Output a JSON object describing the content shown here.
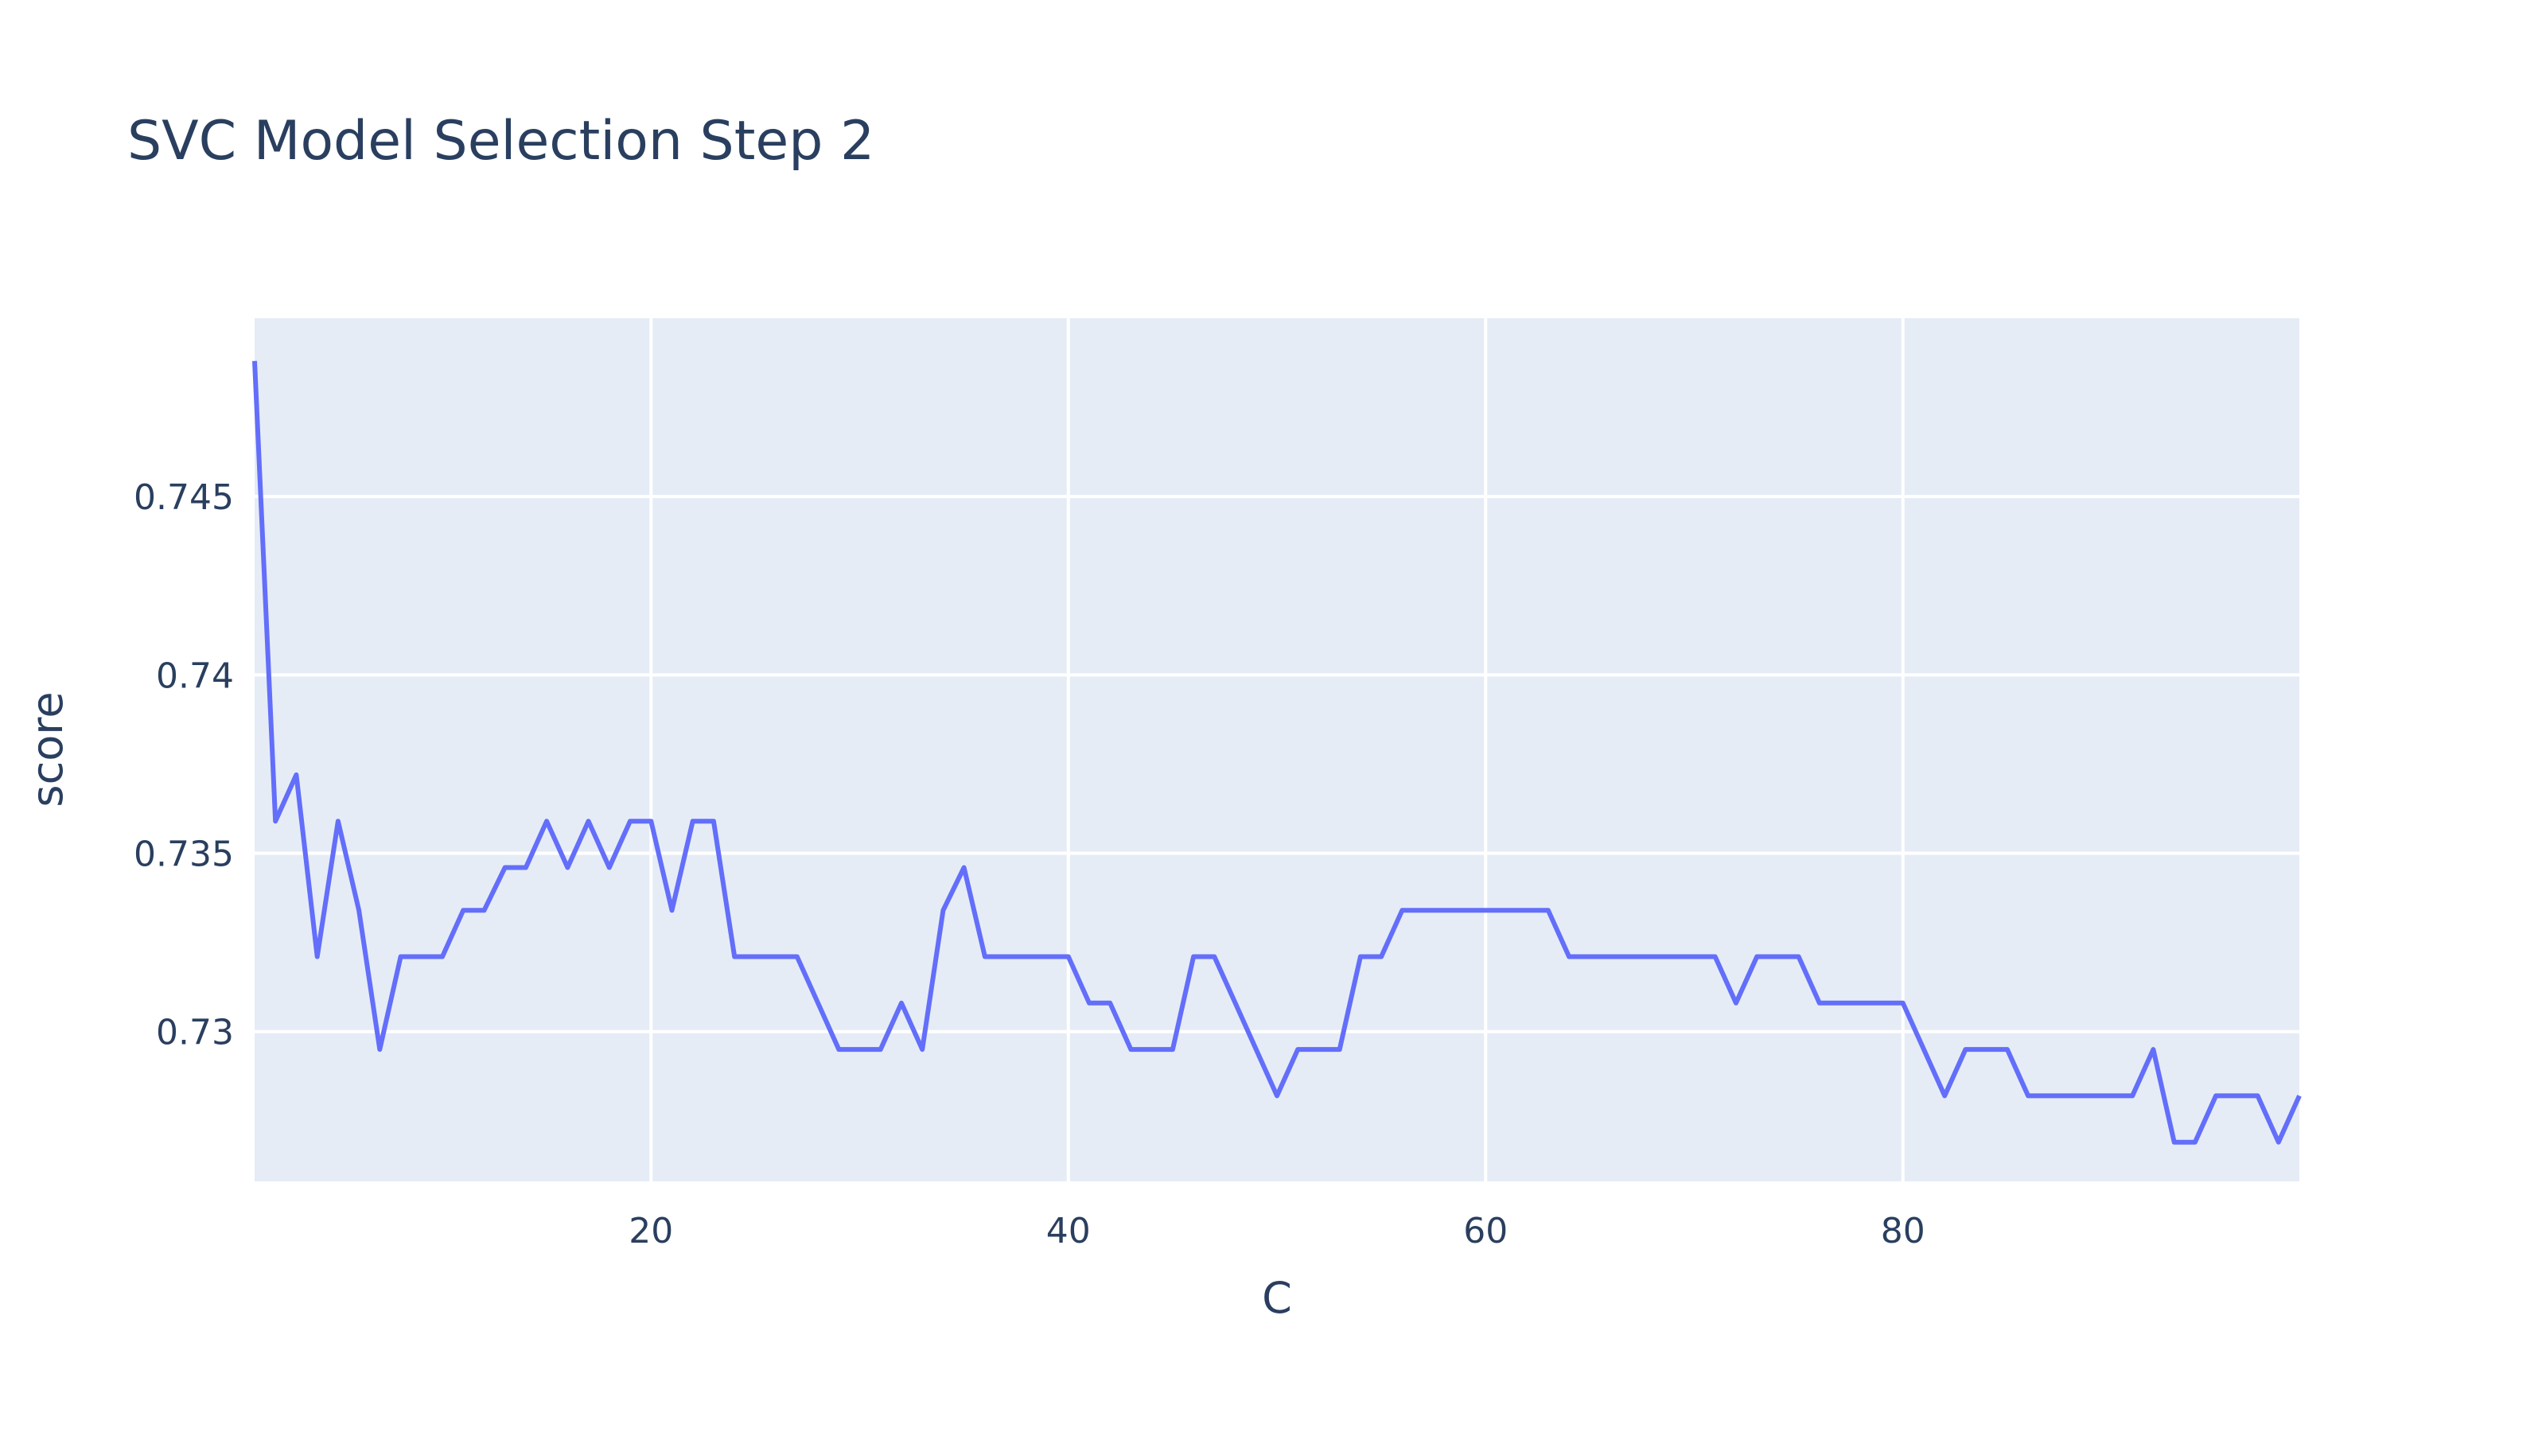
{
  "chart_data": {
    "type": "line",
    "title": "SVC Model Selection Step 2",
    "xlabel": "C",
    "ylabel": "score",
    "xlim": [
      1,
      99
    ],
    "ylim": [
      0.7258,
      0.75
    ],
    "xticks": [
      20,
      40,
      60,
      80
    ],
    "xtick_labels": [
      "20",
      "40",
      "60",
      "80"
    ],
    "yticks": [
      0.73,
      0.735,
      0.74,
      0.745
    ],
    "ytick_labels": [
      "0.73",
      "0.735",
      "0.74",
      "0.745"
    ],
    "grid": true,
    "legend": "none",
    "colors": {
      "plot_bg": "#e5ecf6",
      "paper_bg": "#ffffff",
      "line": "#636efa",
      "text": "#2a3f5f",
      "grid": "#ffffff"
    },
    "series": [
      {
        "x": [
          1,
          2,
          3,
          4,
          5,
          6,
          7,
          8,
          9,
          10,
          11,
          12,
          13,
          14,
          15,
          16,
          17,
          18,
          19,
          20,
          21,
          22,
          23,
          24,
          25,
          26,
          27,
          28,
          29,
          30,
          31,
          32,
          33,
          34,
          35,
          36,
          37,
          38,
          39,
          40,
          41,
          42,
          43,
          44,
          45,
          46,
          47,
          48,
          49,
          50,
          51,
          52,
          53,
          54,
          55,
          56,
          57,
          58,
          59,
          60,
          61,
          62,
          63,
          64,
          65,
          66,
          67,
          68,
          69,
          70,
          71,
          72,
          73,
          74,
          75,
          76,
          77,
          78,
          79,
          80,
          81,
          82,
          83,
          84,
          85,
          86,
          87,
          88,
          89,
          90,
          91,
          92,
          93,
          94,
          95,
          96,
          97,
          98,
          99
        ],
        "y": [
          0.7488,
          0.7359,
          0.7372,
          0.7321,
          0.7359,
          0.7334,
          0.7295,
          0.7321,
          0.7321,
          0.7321,
          0.7334,
          0.7334,
          0.7346,
          0.7346,
          0.7359,
          0.7346,
          0.7359,
          0.7346,
          0.7359,
          0.7359,
          0.7334,
          0.7359,
          0.7359,
          0.7321,
          0.7321,
          0.7321,
          0.7321,
          0.7308,
          0.7295,
          0.7295,
          0.7295,
          0.7308,
          0.7295,
          0.7334,
          0.7346,
          0.7321,
          0.7321,
          0.7321,
          0.7321,
          0.7321,
          0.7308,
          0.7308,
          0.7295,
          0.7295,
          0.7295,
          0.7321,
          0.7321,
          0.7308,
          0.7295,
          0.7282,
          0.7295,
          0.7295,
          0.7295,
          0.7321,
          0.7321,
          0.7334,
          0.7334,
          0.7334,
          0.7334,
          0.7334,
          0.7334,
          0.7334,
          0.7334,
          0.7321,
          0.7321,
          0.7321,
          0.7321,
          0.7321,
          0.7321,
          0.7321,
          0.7321,
          0.7308,
          0.7321,
          0.7321,
          0.7321,
          0.7308,
          0.7308,
          0.7308,
          0.7308,
          0.7308,
          0.7295,
          0.7282,
          0.7295,
          0.7295,
          0.7295,
          0.7282,
          0.7282,
          0.7282,
          0.7282,
          0.7282,
          0.7282,
          0.7295,
          0.7269,
          0.7269,
          0.7282,
          0.7282,
          0.7282,
          0.7269,
          0.7282
        ]
      }
    ]
  }
}
